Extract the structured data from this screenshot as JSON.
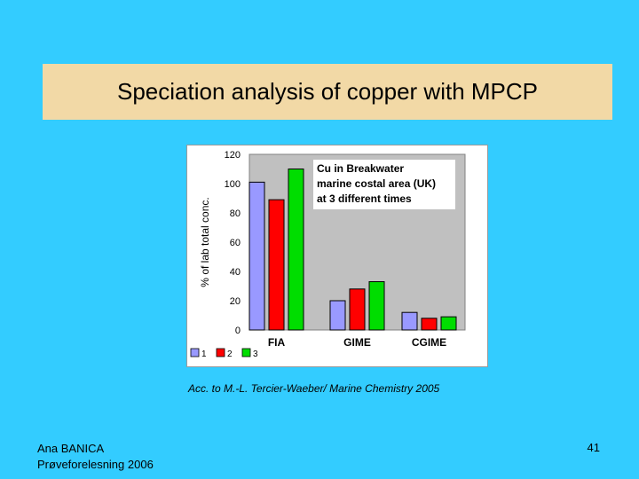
{
  "slide": {
    "title": "Speciation analysis of copper with MPCP",
    "caption": "Acc. to M.-L. Tercier-Waeber/ Marine Chemistry 2005",
    "author": "Ana BANICA",
    "event": "Prøveforelesning 2006",
    "page_number": "41"
  },
  "chart_data": {
    "type": "bar",
    "categories": [
      "FIA",
      "GIME",
      "CGIME"
    ],
    "series": [
      {
        "name": "1",
        "values": [
          101,
          20,
          12
        ],
        "color": "#9999ff"
      },
      {
        "name": "2",
        "values": [
          89,
          28,
          8
        ],
        "color": "#ff0000"
      },
      {
        "name": "3",
        "values": [
          110,
          33,
          9
        ],
        "color": "#00dd00"
      }
    ],
    "ylabel": "% of lab total conc.",
    "ylim": [
      0,
      120
    ],
    "yticks": [
      "0",
      "20",
      "40",
      "60",
      "80",
      "100",
      "120"
    ],
    "annotation": [
      "Cu in Breakwater",
      "marine costal area (UK)",
      "at 3 different times"
    ],
    "legend_placement": "bottom-left",
    "plot_background": "#c0c0c0",
    "grid": false
  }
}
